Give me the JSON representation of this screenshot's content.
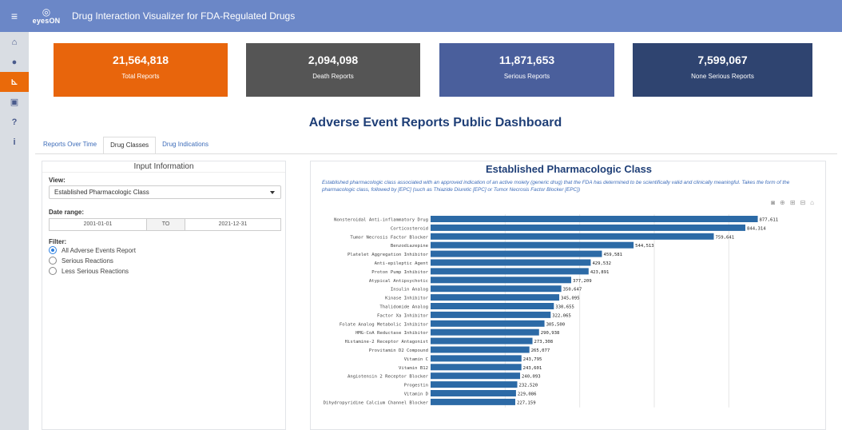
{
  "header": {
    "menu_icon": "hamburger-icon",
    "logo_text": "eyesON",
    "title": "Drug Interaction Visualizer for FDA-Regulated Drugs"
  },
  "sidebar": {
    "items": [
      {
        "icon": "home-icon",
        "glyph": "⌂"
      },
      {
        "icon": "info-icon",
        "glyph": "●"
      },
      {
        "icon": "chart-icon",
        "glyph": "⊾",
        "active": true
      },
      {
        "icon": "document-icon",
        "glyph": "▣"
      },
      {
        "icon": "question-icon",
        "glyph": "?"
      },
      {
        "icon": "about-icon",
        "glyph": "i"
      }
    ]
  },
  "tiles": [
    {
      "value": "21,564,818",
      "label": "Total Reports",
      "color": "#e8650c"
    },
    {
      "value": "2,094,098",
      "label": "Death Reports",
      "color": "#555555"
    },
    {
      "value": "11,871,653",
      "label": "Serious Reports",
      "color": "#4a5f9c"
    },
    {
      "value": "7,599,067",
      "label": "None Serious Reports",
      "color": "#2f4470"
    }
  ],
  "dashboard_title": "Adverse Event Reports Public Dashboard",
  "tabs": [
    {
      "label": "Reports Over Time",
      "active": false
    },
    {
      "label": "Drug Classes",
      "active": true
    },
    {
      "label": "Drug Indications",
      "active": false
    }
  ],
  "input_panel": {
    "title": "Input Information",
    "view_label": "View:",
    "view_value": "Established Pharmacologic Class",
    "date_label": "Date range:",
    "date_start": "2001-01-01",
    "date_to": "TO",
    "date_end": "2021-12-31",
    "filter_label": "Filter:",
    "filters": [
      {
        "label": "All Adverse Events Report",
        "selected": true
      },
      {
        "label": "Serious Reactions",
        "selected": false
      },
      {
        "label": "Less Serious Reactions",
        "selected": false
      }
    ]
  },
  "chart_panel": {
    "title": "Established Pharmacologic Class",
    "description": "Established pharmacologic class associated with an approved indication of an active moiety (generic drug) that the FDA has determined to be scientifically valid and clinically meaningful. Takes the form of the pharmacologic class, followed by [EPC] (such as Thiazide Diuretic [EPC] or Tumor Necrosis Factor Blocker [EPC])",
    "modebar_icons": [
      "camera-icon",
      "zoom-icon",
      "zoom-in-icon",
      "zoom-out-icon",
      "home-reset-icon"
    ]
  },
  "chart_data": {
    "type": "bar",
    "orientation": "horizontal",
    "bar_color": "#2c6aa6",
    "xlim": [
      0,
      900000
    ],
    "categories": [
      "Nonsteroidal Anti-inflammatory Drug",
      "Corticosteroid",
      "Tumor Necrosis Factor Blocker",
      "Benzodiazepine",
      "Platelet Aggregation Inhibitor",
      "Anti-epileptic Agent",
      "Proton Pump Inhibitor",
      "Atypical Antipsychotic",
      "Insulin Analog",
      "Kinase Inhibitor",
      "Thalidomide Analog",
      "Factor Xa Inhibitor",
      "Folate Analog Metabolic Inhibitor",
      "HMG-CoA Reductase Inhibitor",
      "Histamine-2 Receptor Antagonist",
      "Provitamin D2 Compound",
      "Vitamin C",
      "Vitamin B12",
      "Angiotensin 2 Receptor Blocker",
      "Progestin",
      "Vitamin D",
      "Dihydropyridine Calcium Channel Blocker"
    ],
    "values": [
      877611,
      844314,
      759641,
      544513,
      459581,
      429532,
      423891,
      377209,
      350647,
      345095,
      330655,
      322065,
      305500,
      290938,
      273308,
      265077,
      243795,
      243601,
      240093,
      232520,
      229086,
      227159
    ],
    "labels": [
      "877,611",
      "844,314",
      "759,641",
      "544,513",
      "459,581",
      "429,532",
      "423,891",
      "377,209",
      "350,647",
      "345,095",
      "330,655",
      "322,065",
      "305,500",
      "290,938",
      "273,308",
      "265,077",
      "243,795",
      "243,601",
      "240,093",
      "232,520",
      "229,086",
      "227,159"
    ]
  }
}
